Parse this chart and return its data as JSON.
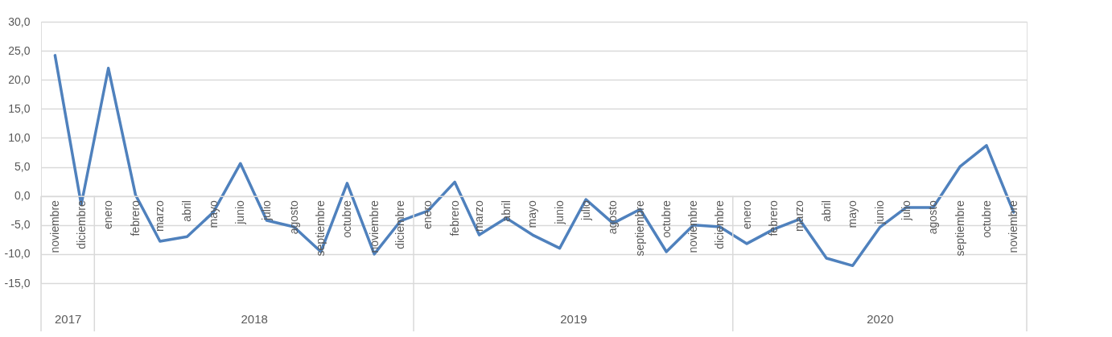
{
  "chart_data": {
    "type": "line",
    "x": [
      "2017-11",
      "2017-12",
      "2018-01",
      "2018-02",
      "2018-03",
      "2018-04",
      "2018-05",
      "2018-06",
      "2018-07",
      "2018-08",
      "2018-09",
      "2018-10",
      "2018-11",
      "2018-12",
      "2019-01",
      "2019-02",
      "2019-03",
      "2019-04",
      "2019-05",
      "2019-06",
      "2019-07",
      "2019-08",
      "2019-09",
      "2019-10",
      "2019-11",
      "2019-12",
      "2020-01",
      "2020-02",
      "2020-03",
      "2020-04",
      "2020-05",
      "2020-06",
      "2020-07",
      "2020-08",
      "2020-09",
      "2020-10",
      "2020-11"
    ],
    "xticks": [
      {
        "value": "2017-11",
        "label": "noviembre"
      },
      {
        "value": "2017-12",
        "label": "diciembre"
      },
      {
        "value": "2018-01",
        "label": "enero"
      },
      {
        "value": "2018-02",
        "label": "febrero"
      },
      {
        "value": "2018-03",
        "label": "marzo"
      },
      {
        "value": "2018-04",
        "label": "abril"
      },
      {
        "value": "2018-05",
        "label": "mayo"
      },
      {
        "value": "2018-06",
        "label": "junio"
      },
      {
        "value": "2018-07",
        "label": "julio"
      },
      {
        "value": "2018-08",
        "label": "agosto"
      },
      {
        "value": "2018-09",
        "label": "septiembre"
      },
      {
        "value": "2018-10",
        "label": "octubre"
      },
      {
        "value": "2018-11",
        "label": "noviembre"
      },
      {
        "value": "2018-12",
        "label": "diciembre"
      },
      {
        "value": "2019-01",
        "label": "enero"
      },
      {
        "value": "2019-02",
        "label": "febrero"
      },
      {
        "value": "2019-03",
        "label": "marzo"
      },
      {
        "value": "2019-04",
        "label": "abril"
      },
      {
        "value": "2019-05",
        "label": "mayo"
      },
      {
        "value": "2019-06",
        "label": "junio"
      },
      {
        "value": "2019-07",
        "label": "julio"
      },
      {
        "value": "2019-08",
        "label": "agosto"
      },
      {
        "value": "2019-09",
        "label": "septiembre"
      },
      {
        "value": "2019-10",
        "label": "octubre"
      },
      {
        "value": "2019-11",
        "label": "noviembre"
      },
      {
        "value": "2019-12",
        "label": "diciembre"
      },
      {
        "value": "2020-01",
        "label": "enero"
      },
      {
        "value": "2020-02",
        "label": "febrero"
      },
      {
        "value": "2020-03",
        "label": "marzo"
      },
      {
        "value": "2020-04",
        "label": "abril"
      },
      {
        "value": "2020-05",
        "label": "mayo"
      },
      {
        "value": "2020-06",
        "label": "junio"
      },
      {
        "value": "2020-07",
        "label": "julio"
      },
      {
        "value": "2020-08",
        "label": "agosto"
      },
      {
        "value": "2020-09",
        "label": "septiembre"
      },
      {
        "value": "2020-10",
        "label": "octubre"
      },
      {
        "value": "2020-11",
        "label": "noviembre"
      }
    ],
    "series": [
      {
        "color": "#4f81bd",
        "values": [
          24.2,
          -1.5,
          22.0,
          0.2,
          -7.8,
          -7.0,
          -2.8,
          5.6,
          -4.2,
          -5.3,
          -9.6,
          2.2,
          -10.0,
          -4.3,
          -2.6,
          2.4,
          -6.7,
          -3.8,
          -6.7,
          -9.0,
          -0.6,
          -4.7,
          -2.3,
          -9.6,
          -5.0,
          -5.3,
          -8.2,
          -5.7,
          -4.0,
          -10.7,
          -12.0,
          -5.4,
          -2.0,
          -2.0,
          5.1,
          8.7,
          -2.8
        ]
      }
    ],
    "ylim": [
      -15,
      30
    ],
    "yticks": [
      {
        "value": -15,
        "label": "-15,0"
      },
      {
        "value": -10,
        "label": "-10,0"
      },
      {
        "value": -5,
        "label": "-5,0"
      },
      {
        "value": 0,
        "label": "0,0"
      },
      {
        "value": 5,
        "label": "5,0"
      },
      {
        "value": 10,
        "label": "10,0"
      },
      {
        "value": 15,
        "label": "15,0"
      },
      {
        "value": 20,
        "label": "20,0"
      },
      {
        "value": 25,
        "label": "25,0"
      },
      {
        "value": 30,
        "label": "30,0"
      }
    ],
    "xlim": [
      "2017-10-16",
      "2020-11-16"
    ],
    "ref_lines": [
      {
        "axis": "x",
        "value": "2017-12-16"
      },
      {
        "axis": "x",
        "value": "2018-12-16"
      },
      {
        "axis": "x",
        "value": "2019-12-16"
      }
    ],
    "annotations": [
      "2017",
      "2018",
      "2019",
      "2020"
    ],
    "grid": "y",
    "marker": "none",
    "line_style": "solid"
  }
}
